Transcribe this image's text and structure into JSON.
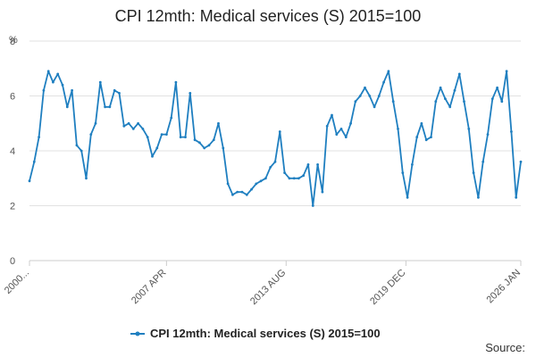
{
  "chart_data": {
    "type": "line",
    "title": "CPI 12mth: Medical services (S) 2015=100",
    "ylabel": "%",
    "xlabel": "",
    "ylim": [
      0,
      8
    ],
    "yticks": [
      0,
      2,
      4,
      6,
      8
    ],
    "xrange": [
      2000.0,
      2026.0
    ],
    "xticks": [
      {
        "value": 2000.0,
        "label": "2000..."
      },
      {
        "value": 2007.25,
        "label": "2007 APR"
      },
      {
        "value": 2013.58,
        "label": "2013 AUG"
      },
      {
        "value": 2019.92,
        "label": "2019 DEC"
      },
      {
        "value": 2026.0,
        "label": "2026 JAN"
      }
    ],
    "grid": "horizontal",
    "legend_position": "bottom",
    "color": "#1f7fc0",
    "series": [
      {
        "name": "CPI 12mth: Medical services (S) 2015=100",
        "x": [
          2000.0,
          2000.25,
          2000.5,
          2000.75,
          2001.0,
          2001.25,
          2001.5,
          2001.75,
          2002.0,
          2002.25,
          2002.5,
          2002.75,
          2003.0,
          2003.25,
          2003.5,
          2003.75,
          2004.0,
          2004.25,
          2004.5,
          2004.75,
          2005.0,
          2005.25,
          2005.5,
          2005.75,
          2006.0,
          2006.25,
          2006.5,
          2006.75,
          2007.0,
          2007.25,
          2007.5,
          2007.75,
          2008.0,
          2008.25,
          2008.5,
          2008.75,
          2009.0,
          2009.25,
          2009.5,
          2009.75,
          2010.0,
          2010.25,
          2010.5,
          2010.75,
          2011.0,
          2011.25,
          2011.5,
          2011.75,
          2012.0,
          2012.25,
          2012.5,
          2012.75,
          2013.0,
          2013.25,
          2013.5,
          2013.75,
          2014.0,
          2014.25,
          2014.5,
          2014.75,
          2015.0,
          2015.25,
          2015.5,
          2015.75,
          2016.0,
          2016.25,
          2016.5,
          2016.75,
          2017.0,
          2017.25,
          2017.5,
          2017.75,
          2018.0,
          2018.25,
          2018.5,
          2018.75,
          2019.0,
          2019.25,
          2019.5,
          2019.75,
          2020.0,
          2020.25,
          2020.5,
          2020.75,
          2021.0,
          2021.25,
          2021.5,
          2021.75,
          2022.0,
          2022.25,
          2022.5,
          2022.75,
          2023.0,
          2023.25,
          2023.5,
          2023.75,
          2024.0,
          2024.25,
          2024.5,
          2024.75,
          2025.0,
          2025.25,
          2025.5,
          2025.75,
          2026.0
        ],
        "y": [
          2.9,
          3.6,
          4.5,
          6.2,
          6.9,
          6.5,
          6.8,
          6.4,
          5.6,
          6.2,
          4.2,
          4.0,
          3.0,
          4.6,
          5.0,
          6.5,
          5.6,
          5.6,
          6.2,
          6.1,
          4.9,
          5.0,
          4.8,
          5.0,
          4.8,
          4.5,
          3.8,
          4.1,
          4.6,
          4.6,
          5.2,
          6.5,
          4.5,
          4.5,
          6.1,
          4.4,
          4.3,
          4.1,
          4.2,
          4.4,
          5.0,
          4.1,
          2.8,
          2.4,
          2.5,
          2.5,
          2.4,
          2.6,
          2.8,
          2.9,
          3.0,
          3.4,
          3.6,
          4.7,
          3.2,
          3.0,
          3.0,
          3.0,
          3.1,
          3.5,
          2.0,
          3.5,
          2.5,
          4.9,
          5.3,
          4.6,
          4.8,
          4.5,
          5.0,
          5.8,
          6.0,
          6.3,
          6.0,
          5.6,
          6.0,
          6.5,
          6.9,
          5.8,
          4.8,
          3.2,
          2.3,
          3.5,
          4.5,
          5.0,
          4.4,
          4.5,
          5.8,
          6.3,
          5.9,
          5.6,
          6.2,
          6.8,
          5.8,
          4.8,
          3.2,
          2.3,
          3.6,
          4.6,
          5.9,
          6.3,
          5.8,
          6.9,
          4.7,
          2.3,
          3.6
        ]
      }
    ]
  },
  "legend": {
    "label": "CPI 12mth: Medical services (S) 2015=100"
  },
  "source": {
    "label": "Source:"
  }
}
